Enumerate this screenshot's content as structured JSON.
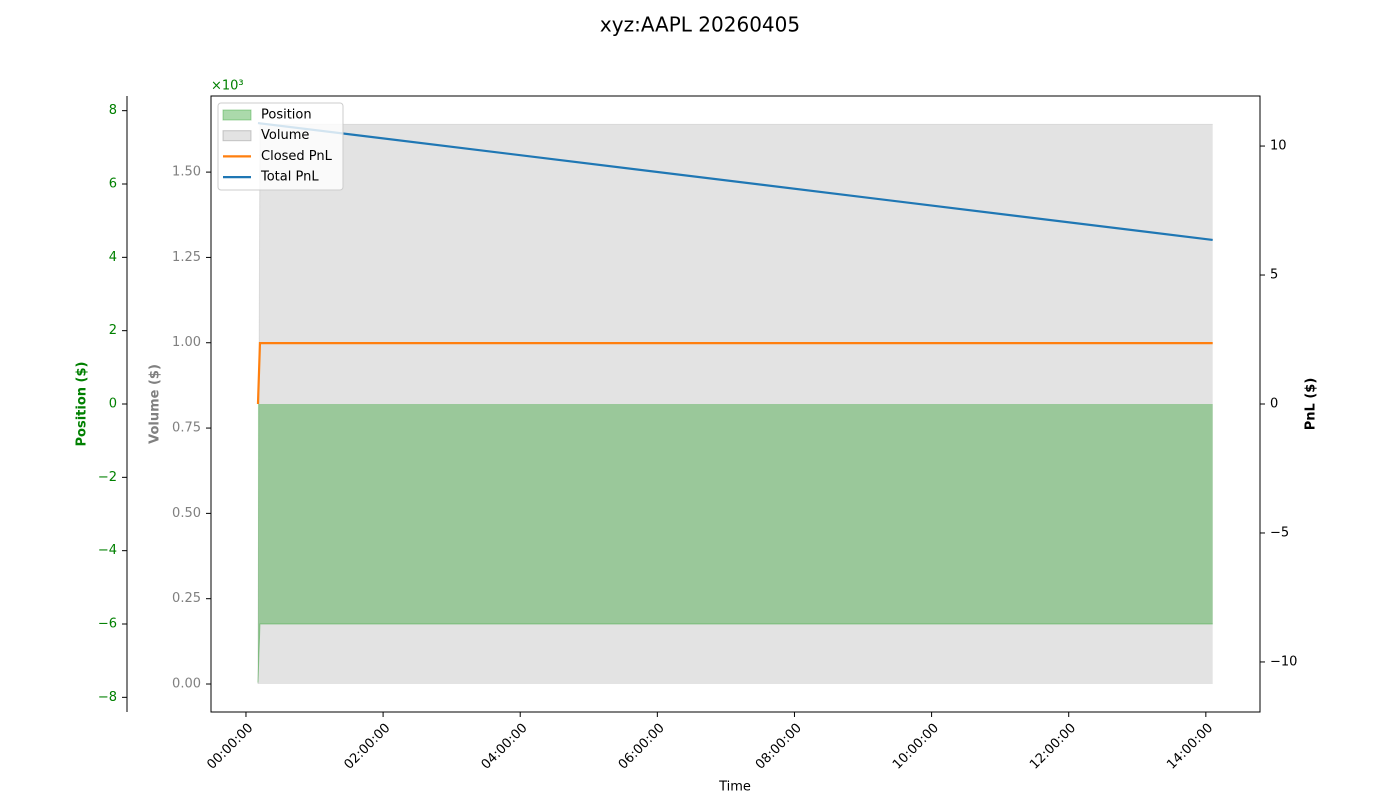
{
  "chart_data": {
    "type": "multi-axis",
    "title": "xyz:AAPL 20260405",
    "xlabel": "Time",
    "ylabel": "Position ($)",
    "y_offset_label": "×10³",
    "y3label": "Volume ($)",
    "y2label": "PnL ($)",
    "x": [
      630,
      735,
      50760
    ],
    "xlim": [
      -1836,
      53244
    ],
    "xticks": [
      {
        "value": 0,
        "label": "00:00:00"
      },
      {
        "value": 7200,
        "label": "02:00:00"
      },
      {
        "value": 14400,
        "label": "04:00:00"
      },
      {
        "value": 21600,
        "label": "06:00:00"
      },
      {
        "value": 28800,
        "label": "08:00:00"
      },
      {
        "value": 36000,
        "label": "10:00:00"
      },
      {
        "value": 43200,
        "label": "12:00:00"
      },
      {
        "value": 50400,
        "label": "14:00:00"
      }
    ],
    "ylim": [
      -8.4,
      8.4
    ],
    "yticks": [
      {
        "value": -8,
        "label": "−8"
      },
      {
        "value": -6,
        "label": "−6"
      },
      {
        "value": -4,
        "label": "−4"
      },
      {
        "value": -2,
        "label": "−2"
      },
      0,
      2,
      4,
      6,
      8
    ],
    "y3lim": [
      -0.082,
      1.723
    ],
    "y3ticks": [
      {
        "value": 0,
        "label": "0.00"
      },
      {
        "value": 0.25,
        "label": "0.25"
      },
      {
        "value": 0.5,
        "label": "0.50"
      },
      {
        "value": 0.75,
        "label": "0.75"
      },
      {
        "value": 1,
        "label": "1.00"
      },
      {
        "value": 1.25,
        "label": "1.25"
      },
      {
        "value": 1.5,
        "label": "1.50"
      }
    ],
    "y2lim": [
      -11.94,
      11.94
    ],
    "y2ticks": [
      {
        "value": -10,
        "label": "−10"
      },
      {
        "value": -5,
        "label": "−5"
      },
      0,
      5,
      10
    ],
    "legend": "upper left",
    "series": [
      {
        "name": "Position",
        "kind": "area",
        "axis": "y",
        "color": "#2ca02c",
        "values": [
          -7.6,
          -6.0,
          -6.0
        ]
      },
      {
        "name": "Volume",
        "kind": "area",
        "axis": "y3",
        "color": "#808080",
        "values": [
          0,
          1.64,
          1.64
        ]
      },
      {
        "name": "Closed PnL",
        "kind": "line",
        "axis": "y2",
        "color": "#ff7f0e",
        "values": [
          0,
          2.36,
          2.36
        ]
      },
      {
        "name": "Total PnL",
        "kind": "line",
        "axis": "y2",
        "color": "#1f77b4",
        "values": [
          10.89,
          10.88,
          6.36
        ]
      }
    ]
  }
}
